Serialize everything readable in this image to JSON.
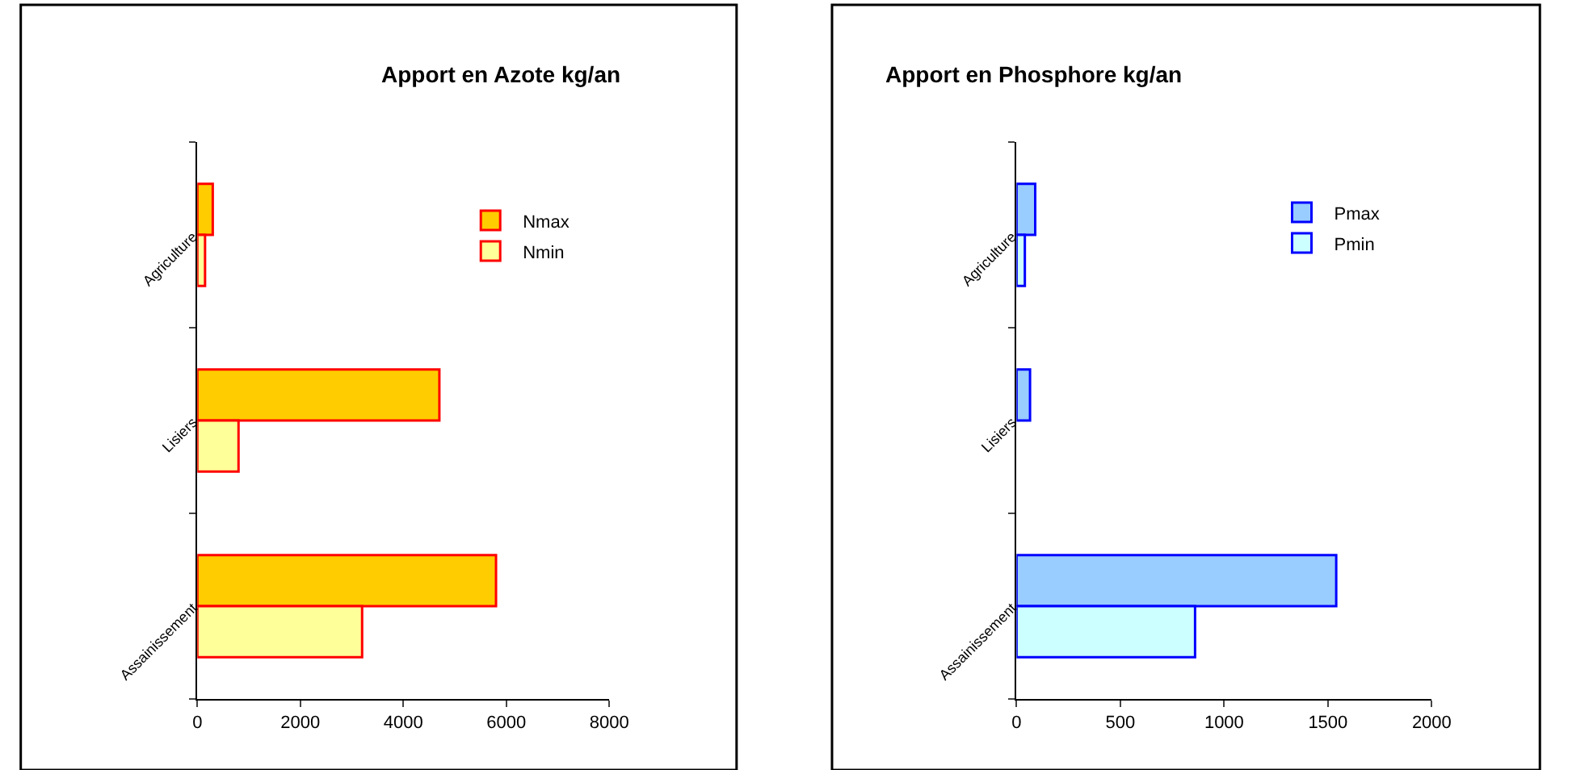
{
  "chart_data": [
    {
      "type": "bar",
      "orientation": "horizontal",
      "title": "Apport en Azote kg/an",
      "categories": [
        "Agriculture",
        "Lisiers",
        "Assainissement"
      ],
      "series": [
        {
          "name": "Nmax",
          "color": "#ffcc00",
          "values": [
            300,
            4700,
            5800
          ]
        },
        {
          "name": "Nmin",
          "color": "#ffff99",
          "values": [
            150,
            800,
            3200
          ]
        }
      ],
      "xlim": [
        0,
        8000
      ],
      "xticks": [
        0,
        2000,
        4000,
        6000,
        8000
      ],
      "legend": "top right",
      "grid": false
    },
    {
      "type": "bar",
      "orientation": "horizontal",
      "title": "Apport en Phosphore kg/an",
      "categories": [
        "Agriculture",
        "Lisiers",
        "Assainissement"
      ],
      "series": [
        {
          "name": "Pmax",
          "color": "#99ccff",
          "values": [
            90,
            65,
            1540
          ]
        },
        {
          "name": "Pmin",
          "color": "#ccffff",
          "values": [
            40,
            null,
            860
          ]
        }
      ],
      "xlim": [
        0,
        2000
      ],
      "xticks": [
        0,
        500,
        1000,
        1500,
        2000
      ],
      "legend": "top right",
      "grid": false
    }
  ]
}
